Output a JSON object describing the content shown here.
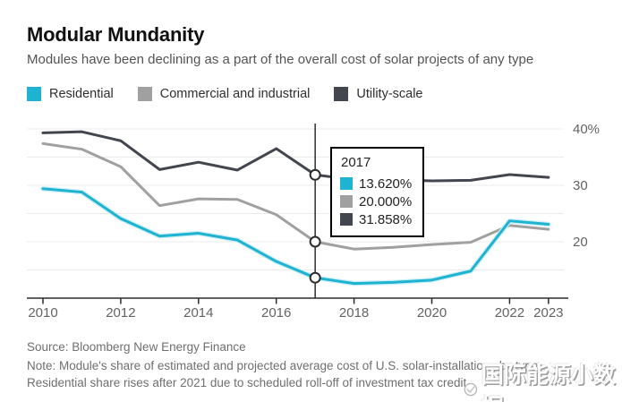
{
  "header": {
    "title": "Modular Mundanity",
    "subtitle": "Modules have been declining as a part of the overall cost of solar projects of any type"
  },
  "legend": [
    {
      "label": "Residential",
      "color": "#1fb3d2"
    },
    {
      "label": "Commercial and industrial",
      "color": "#a0a0a0"
    },
    {
      "label": "Utility-scale",
      "color": "#43464e"
    }
  ],
  "tooltip": {
    "year": "2017",
    "rows": [
      {
        "series": "Residential",
        "color": "#1fb3d2",
        "value": "13.620%"
      },
      {
        "series": "Commercial and industrial",
        "color": "#a0a0a0",
        "value": "20.000%"
      },
      {
        "series": "Utility-scale",
        "color": "#43464e",
        "value": "31.858%"
      }
    ]
  },
  "chart_data": {
    "type": "line",
    "x": [
      2010,
      2011,
      2012,
      2013,
      2014,
      2015,
      2016,
      2017,
      2018,
      2019,
      2020,
      2021,
      2022,
      2023
    ],
    "series": [
      {
        "name": "Residential",
        "color": "#1fb3d2",
        "values": [
          29.4,
          28.8,
          24.1,
          21.0,
          21.5,
          20.3,
          16.5,
          13.62,
          12.6,
          12.8,
          13.2,
          14.8,
          23.7,
          23.1
        ]
      },
      {
        "name": "Commercial and industrial",
        "color": "#a0a0a0",
        "values": [
          37.4,
          36.4,
          33.3,
          26.4,
          27.6,
          27.5,
          24.8,
          20.0,
          18.7,
          19.0,
          19.5,
          19.9,
          22.9,
          22.2
        ]
      },
      {
        "name": "Utility-scale",
        "color": "#43464e",
        "values": [
          39.3,
          39.5,
          37.9,
          32.8,
          34.1,
          32.7,
          36.5,
          31.858,
          31.0,
          31.0,
          30.8,
          30.9,
          31.9,
          31.4
        ]
      }
    ],
    "ylim": [
      10,
      41
    ],
    "yticks": [
      {
        "value": 40,
        "label": "40%"
      },
      {
        "value": 30,
        "label": "30"
      },
      {
        "value": 20,
        "label": "20"
      }
    ],
    "gridline_values": [
      40,
      35,
      30,
      25,
      20,
      15
    ],
    "xticks": [
      2010,
      2012,
      2014,
      2016,
      2018,
      2020,
      2022,
      2023
    ],
    "highlight_x": 2017,
    "grid": true,
    "legend_position": "top",
    "title": "Modular Mundanity",
    "xlabel": "",
    "ylabel": ""
  },
  "footer": {
    "source": "Source: Bloomberg New Energy Finance",
    "note_line1": "Note: Module's share of estimated and projected average cost of U.S. solar-installations by type.",
    "note_line2": "Residential share rises after 2021 due to scheduled roll-off of investment tax credit."
  },
  "watermark": {
    "text": "国际能源小数据"
  },
  "colors": {
    "axis": "#2b2b2b",
    "gridline": "#ebebeb",
    "tick_label": "#636363",
    "highlight_line": "#1f1f1f",
    "marker_stroke": "#2c2c2c"
  }
}
